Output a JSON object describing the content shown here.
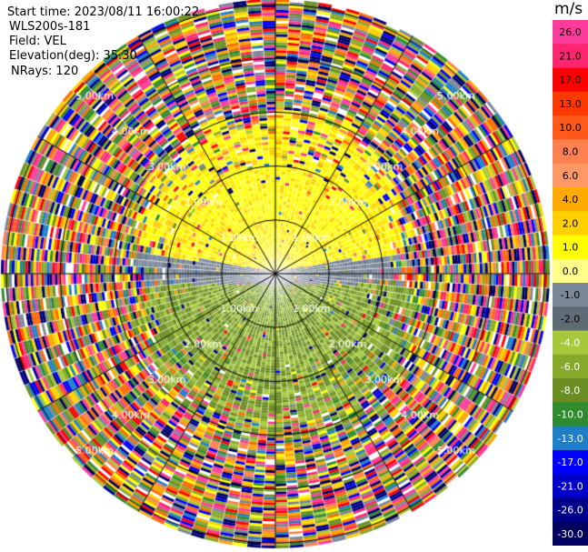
{
  "header": {
    "start_time": "Start time: 2023/08/11 16:00:22",
    "device": "WLS200s-181",
    "field": "Field: VEL",
    "elevation": "Elevation(deg): 35.30",
    "nrays": "NRays: 120"
  },
  "chart_data": {
    "type": "heatmap",
    "projection": "polar-ppi",
    "nrays": 120,
    "range_rings": [
      {
        "label": "1.00km",
        "value": 1.0
      },
      {
        "label": "2.00km",
        "value": 2.0
      },
      {
        "label": "3.00km",
        "value": 3.0
      },
      {
        "label": "4.00km",
        "value": 4.0
      },
      {
        "label": "5.00km",
        "value": 5.0
      }
    ],
    "max_range_km": 5.1,
    "azimuth_lines_deg": [
      0,
      30,
      60,
      90,
      120,
      150
    ],
    "colorbar": {
      "unit": "m/s",
      "ticks": [
        "26.0",
        "21.0",
        "17.0",
        "13.0",
        "10.0",
        "8.0",
        "6.0",
        "4.0",
        "2.0",
        "1.0",
        "0.0",
        "-1.0",
        "-2.0",
        "-4.0",
        "-6.0",
        "-8.0",
        "-10.0",
        "-13.0",
        "-17.0",
        "-21.0",
        "-26.0",
        "-30.0"
      ],
      "colors": [
        "#ff3c9b",
        "#ff2670",
        "#ff0000",
        "#ff3a00",
        "#ff5a1a",
        "#ff8050",
        "#ff9966",
        "#ffaa00",
        "#ffd000",
        "#ffff00",
        "#ffff88",
        "#7a8799",
        "#5f6b75",
        "#a6c83a",
        "#86a92a",
        "#6b8e23",
        "#2e8b2e",
        "#1e7fc8",
        "#0000ff",
        "#0000c8",
        "#00008b",
        "#000060"
      ]
    },
    "regions": [
      {
        "sector": "north",
        "velocity_ms": 2.0
      },
      {
        "sector": "south",
        "velocity_ms": -3.0
      },
      {
        "sector": "east-west",
        "velocity_ms": 0.0
      },
      {
        "sector": "outer",
        "velocity_ms": "noise"
      }
    ]
  }
}
